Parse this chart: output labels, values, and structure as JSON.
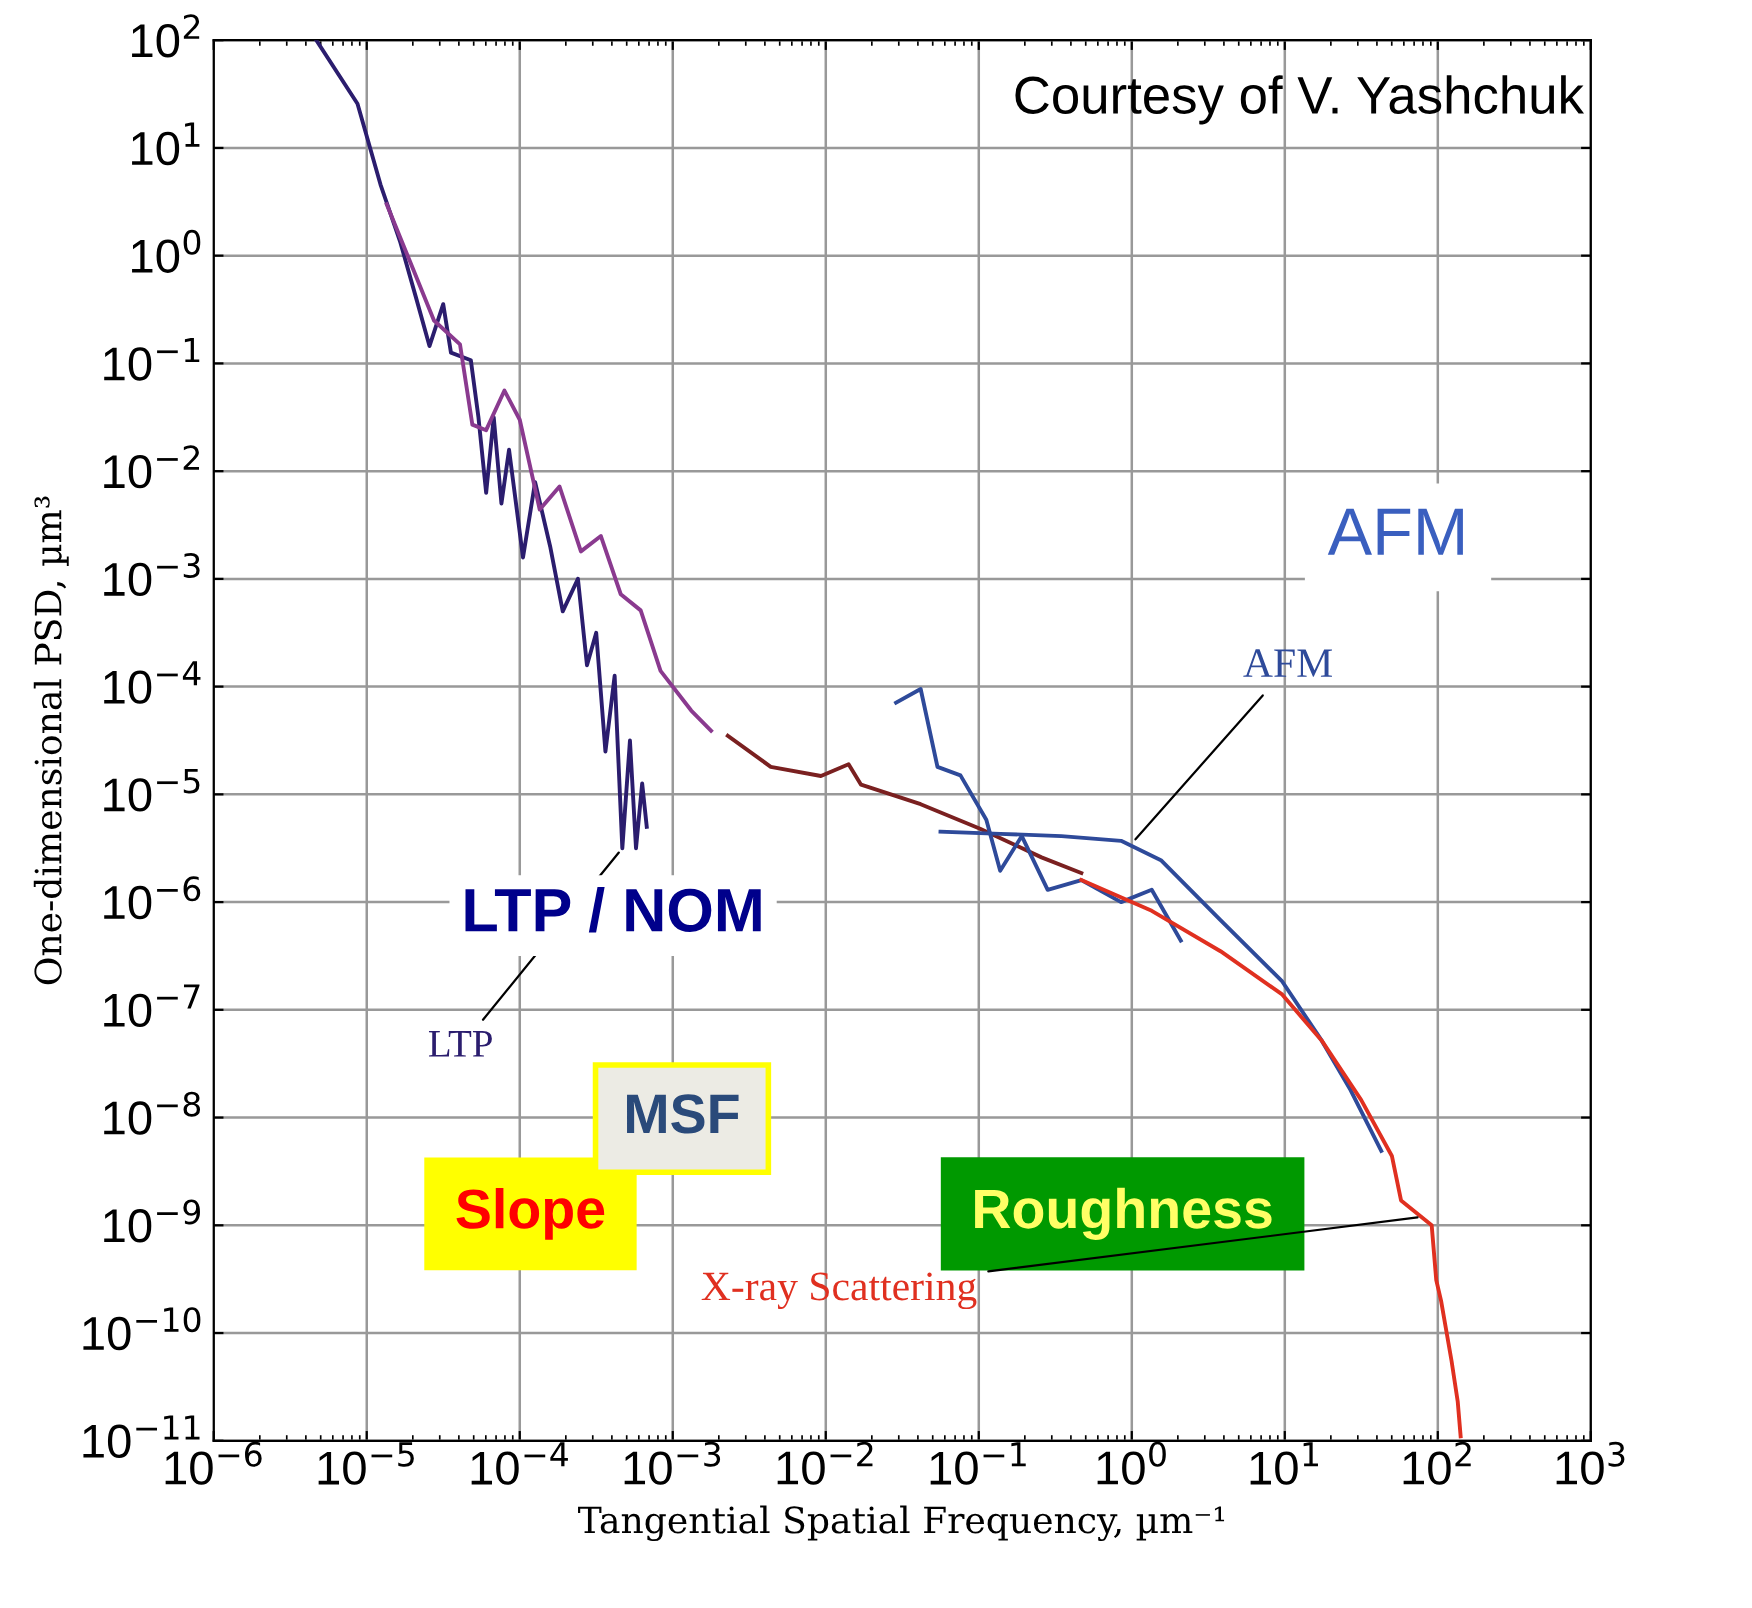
{
  "chart_data": {
    "type": "line",
    "xlabel": "Tangential Spatial Frequency, µm⁻¹",
    "ylabel": "One-dimensional PSD, µm³",
    "log": "xy",
    "grid": true,
    "xlim": [
      1e-06,
      1000
    ],
    "ylim": [
      1e-11,
      100
    ],
    "xticks": [
      {
        "value": 1e-06,
        "label": "10$^{−6}$"
      },
      {
        "value": 1e-05,
        "label": "10$^{−5}$"
      },
      {
        "value": 0.0001,
        "label": "10$^{−4}$"
      },
      {
        "value": 0.001,
        "label": "10$^{−3}$"
      },
      {
        "value": 0.01,
        "label": "10$^{−2}$"
      },
      {
        "value": 0.1,
        "label": "10$^{−1}$"
      },
      {
        "value": 1,
        "label": "10$^{0}$"
      },
      {
        "value": 10,
        "label": "10$^{1}$"
      },
      {
        "value": 100,
        "label": "10$^{2}$"
      },
      {
        "value": 1000,
        "label": "10$^{3}$"
      }
    ],
    "yticks": [
      {
        "value": 1e-11,
        "label": "10$^{−11}$"
      },
      {
        "value": 1e-10,
        "label": "10$^{−10}$"
      },
      {
        "value": 1e-09,
        "label": "10$^{−9}$"
      },
      {
        "value": 1e-08,
        "label": "10$^{−8}$"
      },
      {
        "value": 1e-07,
        "label": "10$^{−7}$"
      },
      {
        "value": 1e-06,
        "label": "10$^{−6}$"
      },
      {
        "value": 1e-05,
        "label": "10$^{−5}$"
      },
      {
        "value": 0.0001,
        "label": "10$^{−4}$"
      },
      {
        "value": 0.001,
        "label": "10$^{−3}$"
      },
      {
        "value": 0.01,
        "label": "10$^{−2}$"
      },
      {
        "value": 0.1,
        "label": "10$^{−1}$"
      },
      {
        "value": 1,
        "label": "10$^{0}$"
      },
      {
        "value": 10,
        "label": "10$^{1}$"
      },
      {
        "value": 100,
        "label": "10$^{2}$"
      }
    ],
    "series": [
      {
        "color": "#2b1d6e",
        "x": [
          4.68e-06,
          8.7e-06,
          1.23e-05,
          1.66e-05,
          2.09e-05,
          2.57e-05,
          3.16e-05,
          3.55e-05,
          4.79e-05,
          5.37e-05,
          6.03e-05,
          6.76e-05,
          7.59e-05,
          8.51e-05,
          0.000105,
          0.000126,
          0.000158,
          0.000191,
          0.00024,
          0.000275,
          0.000316,
          0.000363,
          0.000417,
          0.000468,
          0.000525,
          0.000575,
          0.000631,
          0.000676
        ],
        "values": [
          100,
          25.7,
          4.57,
          1.32,
          0.417,
          0.145,
          0.355,
          0.126,
          0.107,
          0.0316,
          0.0063,
          0.0316,
          0.005,
          0.0158,
          0.00158,
          0.0079,
          0.002,
          0.0005,
          0.001,
          0.000158,
          0.000316,
          2.5e-05,
          0.000126,
          3.16e-06,
          3.16e-05,
          3.16e-06,
          1.26e-05,
          5e-06
        ]
      },
      {
        "color": "#8a3a8f",
        "x": [
          1.35e-05,
          1.9e-05,
          2.75e-05,
          4.07e-05,
          4.9e-05,
          6.03e-05,
          7.94e-05,
          0.0001,
          0.000135,
          0.000182,
          0.000251,
          0.000339,
          0.000457,
          0.000617,
          0.000832,
          0.00132,
          0.00178
        ],
        "values": [
          3.0,
          0.91,
          0.25,
          0.15,
          0.027,
          0.024,
          0.056,
          0.03,
          0.0044,
          0.0072,
          0.0018,
          0.0025,
          0.00072,
          0.00051,
          0.00014,
          6e-05,
          3.9e-05
        ]
      },
      {
        "color": "#7a2020",
        "x": [
          0.00229,
          0.00437,
          0.0093,
          0.0141,
          0.017,
          0.0417,
          0.102,
          0.257,
          0.468
        ],
        "values": [
          3.5e-05,
          1.8e-05,
          1.48e-05,
          1.9e-05,
          1.23e-05,
          8.1e-06,
          4.8e-06,
          2.6e-06,
          1.86e-06
        ]
      },
      {
        "color": "#2e4a9a",
        "x": [
          0.0288,
          0.0417,
          0.0537,
          0.0759,
          0.112,
          0.138,
          0.191,
          0.282,
          0.468,
          0.851,
          1.35,
          2.09
        ],
        "values": [
          7.1e-05,
          9.5e-05,
          1.8e-05,
          1.5e-05,
          5.8e-06,
          1.95e-06,
          4.1e-06,
          1.3e-06,
          1.6e-06,
          1e-06,
          1.3e-06,
          4.4e-07
        ]
      },
      {
        "color": "#2e4a9a",
        "x": [
          0.0562,
          0.138,
          0.347,
          0.851,
          1.55,
          3.8,
          9.55,
          17.4,
          26.9,
          42.7
        ],
        "values": [
          4.5e-06,
          4.3e-06,
          4.1e-06,
          3.7e-06,
          2.45e-06,
          6.8e-07,
          1.86e-07,
          5.2e-08,
          1.8e-08,
          4.9e-09
        ]
      },
      {
        "color": "#e03020",
        "x": [
          0.468,
          1.35,
          3.8,
          9.55,
          17.4,
          31.6,
          50.1,
          57.5,
          91.2,
          97.7,
          105,
          123,
          135,
          141
        ],
        "values": [
          1.6e-06,
          8.3e-07,
          3.5e-07,
          1.4e-07,
          5.2e-08,
          1.45e-08,
          4.4e-09,
          1.7e-09,
          1e-09,
          3.1e-10,
          2e-10,
          5.5e-11,
          2.3e-11,
          1.1e-11
        ]
      }
    ],
    "annotations": [
      "Courtesy of V. Yashchuk",
      "LTP / NOM",
      {
        "text": "LTP",
        "x": 0.000468,
        "y": 3.16e-06
      },
      "AFM",
      {
        "text": "AFM",
        "x": 1.0,
        "y": 3.5e-06
      },
      {
        "text": "X-ray Scattering",
        "x": 80,
        "y": 1.2e-09
      },
      "Slope",
      "MSF",
      "Roughness"
    ]
  }
}
